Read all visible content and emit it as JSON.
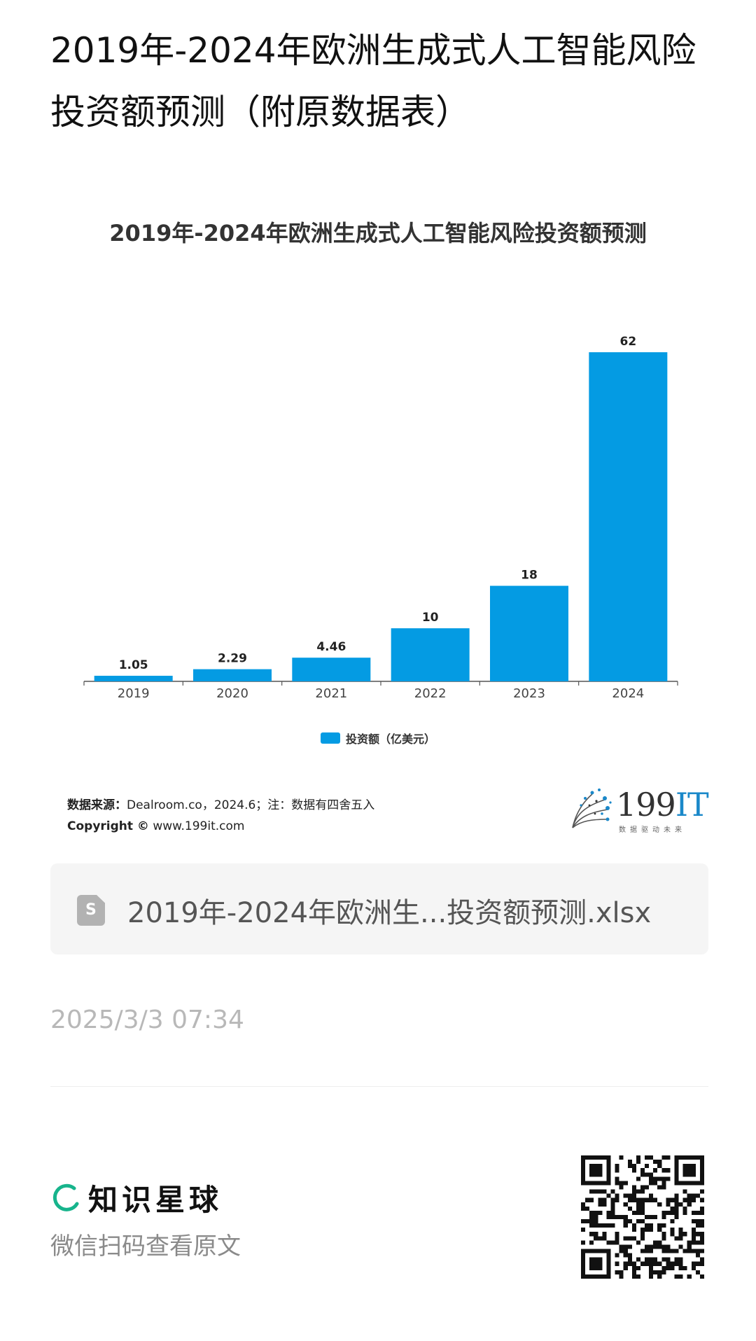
{
  "post": {
    "title": "2019年-2024年欧洲生成式人工智能风险投资额预测（附原数据表）",
    "time": "2025/3/3 07:34"
  },
  "chart": {
    "source_label": "数据来源：",
    "source_text": "Dealroom.co，2024.6；注：数据有四舍五入",
    "copyright_label": "Copyright ©",
    "copyright_text": "www.199it.com"
  },
  "chart_data": {
    "type": "bar",
    "title": "2019年-2024年欧洲生成式人工智能风险投资额预测",
    "categories": [
      "2019",
      "2020",
      "2021",
      "2022",
      "2023",
      "2024"
    ],
    "series": [
      {
        "name": "投资额（亿美元）",
        "values": [
          1.05,
          2.29,
          4.46,
          10,
          18,
          62
        ]
      }
    ],
    "data_labels": [
      "1.05",
      "2.29",
      "4.46",
      "10",
      "18",
      "62"
    ],
    "bar_color": "#049be3",
    "ylim": [
      0,
      62
    ],
    "grid": false,
    "legend_position": "bottom"
  },
  "brand": {
    "number": "199",
    "it": "IT",
    "slogan": "数据驱动未来"
  },
  "attachment": {
    "icon": "spreadsheet-file-icon",
    "icon_glyph": "S",
    "filename": "2019年-2024年欧洲生...投资额预测.xlsx"
  },
  "footer": {
    "app_name": "知识星球",
    "hint": "微信扫码查看原文",
    "logo_color": "#17b48c"
  }
}
